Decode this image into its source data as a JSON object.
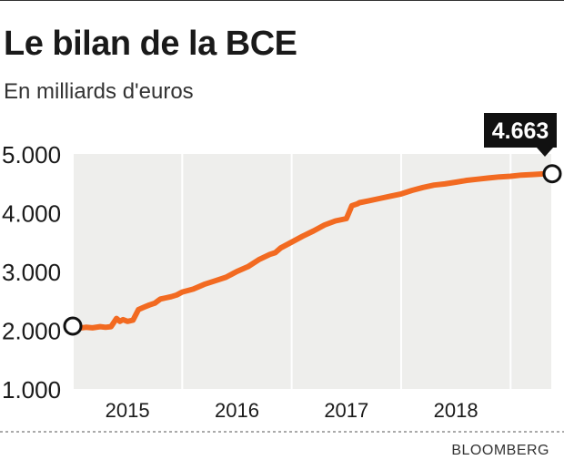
{
  "title": "Le bilan de la BCE",
  "subtitle": "En milliards d'euros",
  "source": "BLOOMBERG",
  "colors": {
    "line": "#f26a21",
    "plot_bg": "#eeeeec",
    "callout_bg": "#111111",
    "callout_text": "#ffffff"
  },
  "chart_data": {
    "type": "line",
    "title": "Le bilan de la BCE",
    "subtitle": "En milliards d'euros",
    "ylim": [
      1000,
      5000
    ],
    "xlim": [
      2014.6,
      2018.98
    ],
    "y_ticks": [
      5000,
      4000,
      3000,
      2000,
      1000
    ],
    "y_tick_labels": [
      "5.000",
      "4.000",
      "3.000",
      "2.000",
      "1.000"
    ],
    "x_ticks": [
      2015,
      2016,
      2017,
      2018
    ],
    "x_tick_labels": [
      "2015",
      "2016",
      "2017",
      "2018"
    ],
    "grid": "vertical",
    "series": [
      {
        "x": [
          2014.63,
          2014.72,
          2014.78,
          2014.85,
          2014.9,
          2014.95,
          2015.0,
          2015.03,
          2015.06,
          2015.1,
          2015.15,
          2015.2,
          2015.25,
          2015.3,
          2015.35,
          2015.4,
          2015.45,
          2015.5,
          2015.55,
          2015.6,
          2015.7,
          2015.8,
          2015.9,
          2016.0,
          2016.1,
          2016.2,
          2016.3,
          2016.4,
          2016.45,
          2016.5,
          2016.6,
          2016.7,
          2016.8,
          2016.9,
          2017.0,
          2017.1,
          2017.15,
          2017.2,
          2017.22,
          2017.3,
          2017.4,
          2017.5,
          2017.6,
          2017.7,
          2017.8,
          2017.9,
          2018.0,
          2018.1,
          2018.2,
          2018.3,
          2018.4,
          2018.5,
          2018.6,
          2018.7,
          2018.8,
          2018.9,
          2018.98
        ],
        "values": [
          2030,
          2050,
          2040,
          2060,
          2050,
          2060,
          2200,
          2150,
          2180,
          2150,
          2170,
          2350,
          2390,
          2430,
          2460,
          2530,
          2550,
          2570,
          2600,
          2650,
          2700,
          2780,
          2840,
          2900,
          3000,
          3080,
          3200,
          3290,
          3320,
          3400,
          3500,
          3600,
          3690,
          3790,
          3860,
          3900,
          4120,
          4150,
          4170,
          4200,
          4240,
          4280,
          4320,
          4380,
          4430,
          4470,
          4490,
          4520,
          4550,
          4570,
          4590,
          4610,
          4620,
          4640,
          4650,
          4660,
          4663
        ]
      }
    ],
    "start_marker": {
      "x": 2014.6,
      "y": 2070
    },
    "end_marker": {
      "x": 2018.98,
      "y": 4663
    },
    "callout": {
      "label": "4.663",
      "x": 2018.98,
      "y": 4663
    }
  }
}
